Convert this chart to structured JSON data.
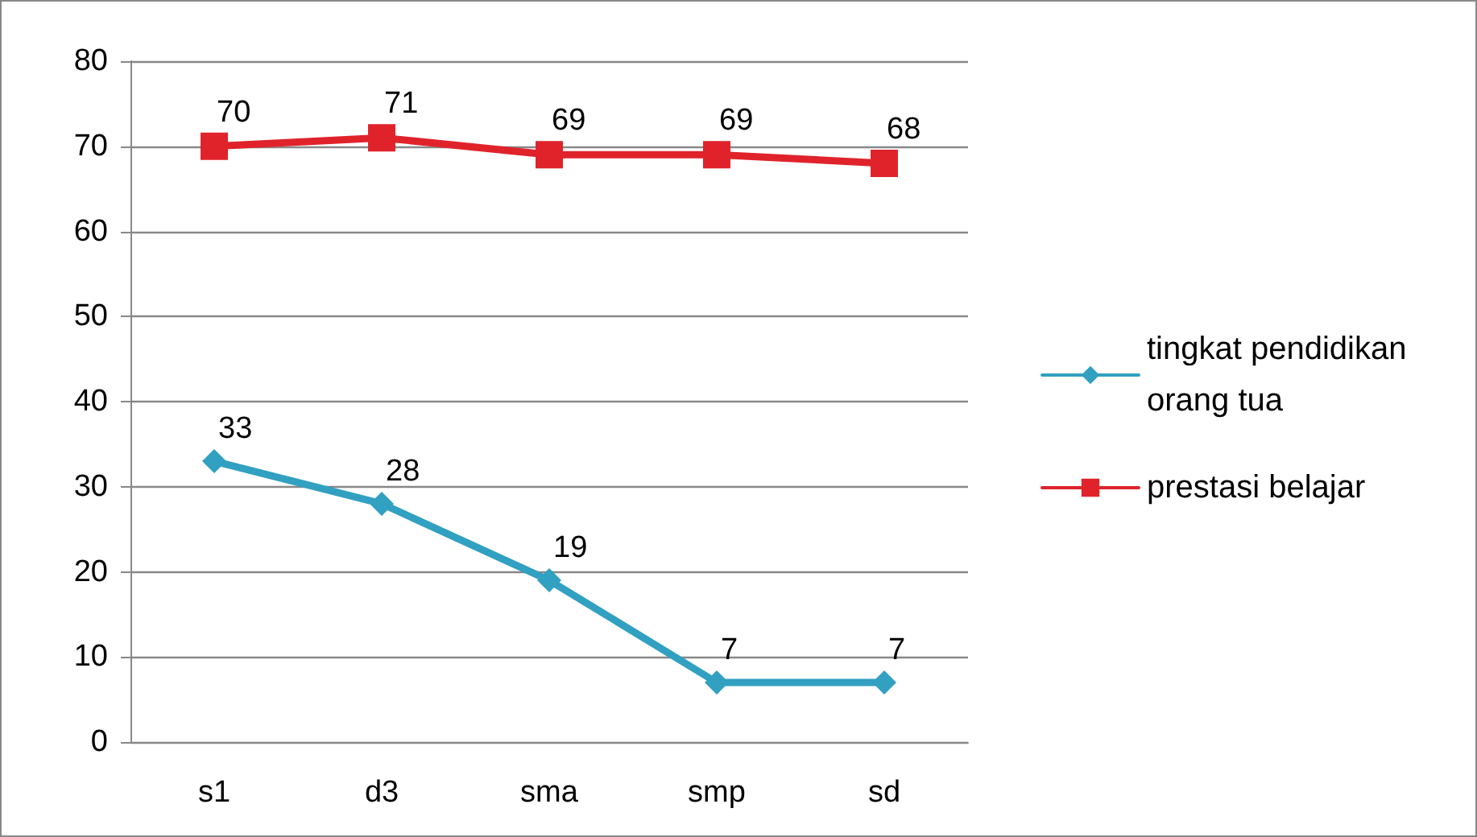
{
  "chart_data": {
    "type": "line",
    "categories": [
      "s1",
      "d3",
      "sma",
      "smp",
      "sd"
    ],
    "series": [
      {
        "name": "tingkat pendidikan orang tua",
        "color": "#31a0c1",
        "marker": "diamond",
        "values": [
          33,
          28,
          19,
          7,
          7
        ]
      },
      {
        "name": "prestasi belajar",
        "color": "#e0232b",
        "marker": "square",
        "values": [
          70,
          71,
          69,
          69,
          68
        ]
      }
    ],
    "ylim": [
      0,
      80
    ],
    "yticks": [
      0,
      10,
      20,
      30,
      40,
      50,
      60,
      70,
      80
    ],
    "grid": "y",
    "legend": "right",
    "data_labels": true,
    "line_style": "solid"
  }
}
